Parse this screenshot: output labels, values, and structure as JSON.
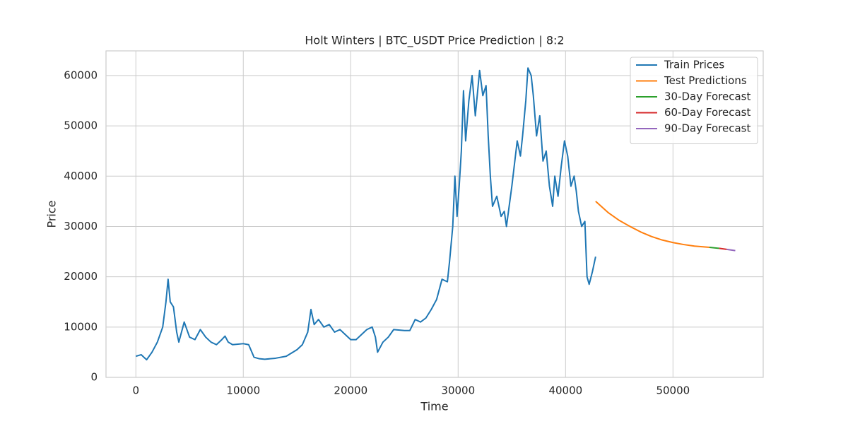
{
  "chart_data": {
    "type": "line",
    "title": "Holt Winters | BTC_USDT Price Prediction | 8:2",
    "xlabel": "Time",
    "ylabel": "Price",
    "xlim": [
      -2780,
      58400
    ],
    "ylim": [
      0,
      64900
    ],
    "xticks": [
      0,
      10000,
      20000,
      30000,
      40000,
      50000
    ],
    "yticks": [
      0,
      10000,
      20000,
      30000,
      40000,
      50000,
      60000
    ],
    "grid": true,
    "legend": "upper right",
    "series": [
      {
        "name": "Train Prices",
        "color": "#1f77b4",
        "x": [
          0,
          500,
          1000,
          1500,
          2000,
          2500,
          2800,
          3000,
          3200,
          3500,
          3800,
          4000,
          4500,
          5000,
          5500,
          6000,
          6500,
          7000,
          7500,
          8000,
          8300,
          8600,
          9000,
          10000,
          10500,
          11000,
          11500,
          12000,
          13000,
          14000,
          15000,
          15500,
          16000,
          16300,
          16600,
          17000,
          17500,
          18000,
          18500,
          19000,
          19500,
          20000,
          20500,
          21000,
          21500,
          22000,
          22300,
          22500,
          23000,
          23500,
          24000,
          25000,
          25500,
          26000,
          26500,
          27000,
          27500,
          28000,
          28500,
          29000,
          29200,
          29500,
          29700,
          29900,
          30100,
          30300,
          30500,
          30700,
          31000,
          31300,
          31600,
          32000,
          32300,
          32600,
          32800,
          33000,
          33200,
          33600,
          34000,
          34300,
          34500,
          35000,
          35500,
          35800,
          36000,
          36300,
          36500,
          36800,
          37000,
          37300,
          37600,
          37900,
          38200,
          38500,
          38800,
          39000,
          39300,
          39600,
          39900,
          40200,
          40500,
          40800,
          41000,
          41200,
          41500,
          41800,
          42000,
          42200,
          42500,
          42800
        ],
        "values": [
          4200,
          4500,
          3500,
          5000,
          7000,
          10000,
          15000,
          19500,
          15000,
          14000,
          9000,
          7000,
          11000,
          8000,
          7500,
          9500,
          8000,
          7000,
          6500,
          7500,
          8200,
          7000,
          6500,
          6700,
          6500,
          4000,
          3700,
          3600,
          3800,
          4200,
          5500,
          6500,
          9000,
          13500,
          10500,
          11500,
          10000,
          10500,
          9000,
          9500,
          8500,
          7500,
          7500,
          8500,
          9500,
          10000,
          8000,
          5000,
          7000,
          8000,
          9500,
          9300,
          9300,
          11500,
          11000,
          11800,
          13500,
          15500,
          19500,
          19000,
          23000,
          30000,
          40000,
          32000,
          38000,
          45000,
          57000,
          47000,
          55000,
          60000,
          52000,
          61000,
          56000,
          58000,
          48000,
          40000,
          34000,
          36000,
          32000,
          33000,
          30000,
          38000,
          47000,
          44000,
          48000,
          55000,
          61500,
          60000,
          56000,
          48000,
          52000,
          43000,
          45000,
          38000,
          34000,
          40000,
          36000,
          42000,
          47000,
          44000,
          38000,
          40000,
          37000,
          33000,
          30000,
          31000,
          20000,
          18500,
          21000,
          24000
        ]
      },
      {
        "name": "Test Predictions",
        "color": "#ff7f0e",
        "x": [
          42800,
          44000,
          45000,
          46000,
          47000,
          48000,
          49000,
          50000,
          51000,
          52000,
          53400
        ],
        "values": [
          35000,
          32700,
          31200,
          30000,
          28900,
          28000,
          27300,
          26800,
          26400,
          26100,
          25850
        ]
      },
      {
        "name": "30-Day Forecast",
        "color": "#2ca02c",
        "x": [
          53400,
          54300
        ],
        "values": [
          25850,
          25650
        ]
      },
      {
        "name": "60-Day Forecast",
        "color": "#d62728",
        "x": [
          54300,
          55000
        ],
        "values": [
          25650,
          25450
        ]
      },
      {
        "name": "90-Day Forecast",
        "color": "#9467bd",
        "x": [
          55000,
          55800
        ],
        "values": [
          25450,
          25200
        ]
      }
    ]
  }
}
